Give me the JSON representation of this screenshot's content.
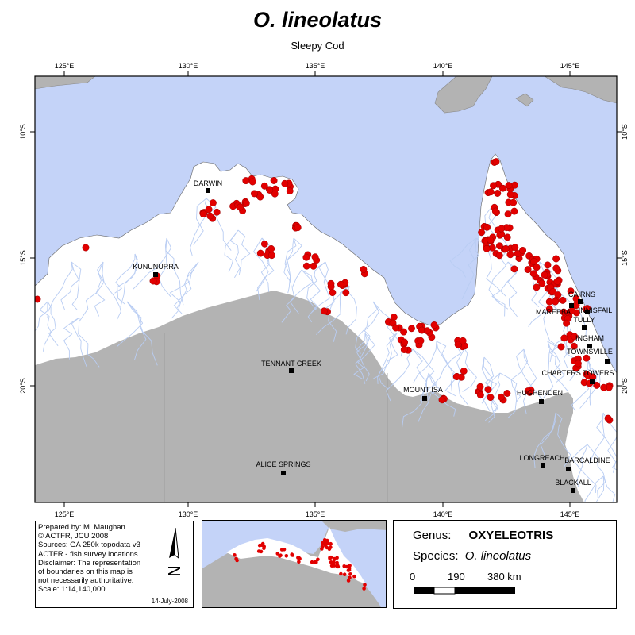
{
  "title": "O. lineolatus",
  "subtitle": "Sleepy Cod",
  "map": {
    "lon_ticks": [
      "125°E",
      "130°E",
      "135°E",
      "140°E",
      "145°E"
    ],
    "lat_ticks": [
      "10°S",
      "15°S",
      "20°S"
    ],
    "colors": {
      "ocean": "#c4d3f8",
      "land": "#ffffff",
      "outside_region": "#b3b3b3",
      "rivers": "#b9cdf3",
      "occurrence": "#e20000"
    },
    "towns": [
      {
        "name": "DARWIN"
      },
      {
        "name": "KUNUNURRA"
      },
      {
        "name": "TENNANT CREEK"
      },
      {
        "name": "ALICE SPRINGS"
      },
      {
        "name": "MOUNT ISA"
      },
      {
        "name": "HUGHENDEN"
      },
      {
        "name": "LONGREACH"
      },
      {
        "name": "BARCALDINE"
      },
      {
        "name": "BLACKALL"
      },
      {
        "name": "CHARTERS TOWERS"
      },
      {
        "name": "TOWNSVILLE"
      },
      {
        "name": "INGHAM"
      },
      {
        "name": "TULLY"
      },
      {
        "name": "INNISFAIL"
      },
      {
        "name": "MAREEBA"
      },
      {
        "name": "CAIRNS"
      }
    ]
  },
  "info": {
    "lines": [
      "Prepared by: M. Maughan",
      "© ACTFR, JCU 2008",
      "Sources: GA 250k topodata v3",
      "ACTFR - fish survey locations",
      "Disclaimer: The representation",
      "of boundaries on this map is",
      "not necessarily authoritative.",
      "Scale: 1:14,140,000"
    ],
    "date": "14-July-2008",
    "north_label": "N"
  },
  "legend": {
    "genus_label": "Genus:",
    "genus_value": "OXYELEOTRIS",
    "species_label": "Species:",
    "species_value": "O. lineolatus",
    "scale_labels": [
      "0",
      "190",
      "380 km"
    ]
  }
}
